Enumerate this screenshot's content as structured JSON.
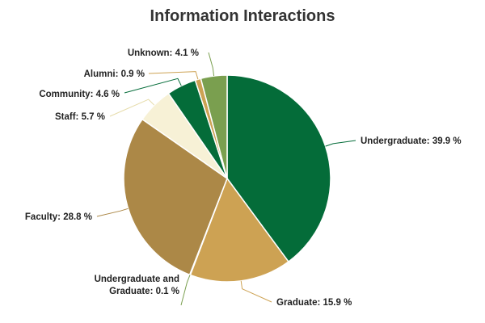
{
  "chart_data": {
    "type": "pie",
    "title": "Information Interactions",
    "unit": "%",
    "slices": [
      {
        "name": "Undergraduate",
        "value": 39.9,
        "color": "#046c39"
      },
      {
        "name": "Graduate",
        "value": 15.9,
        "color": "#cda253"
      },
      {
        "name": "Undergraduate and Graduate",
        "value": 0.1,
        "color": "#7a9f4f"
      },
      {
        "name": "Faculty",
        "value": 28.8,
        "color": "#ac8847"
      },
      {
        "name": "Staff",
        "value": 5.7,
        "color": "#f7f1d6"
      },
      {
        "name": "Community",
        "value": 4.6,
        "color": "#046c39"
      },
      {
        "name": "Alumni",
        "value": 0.9,
        "color": "#cda253"
      },
      {
        "name": "Unknown",
        "value": 4.1,
        "color": "#7a9f4f"
      }
    ],
    "labels": [
      [
        "Undergraduate: 39.9 %"
      ],
      [
        "Graduate: 15.9 %"
      ],
      [
        "Undergraduate and",
        "Graduate: 0.1 %"
      ],
      [
        "Faculty: 28.8 %"
      ],
      [
        "Staff: 5.7 %"
      ],
      [
        "Community: 4.6 %"
      ],
      [
        "Alumni: 0.9 %"
      ],
      [
        "Unknown: 4.1 %"
      ]
    ],
    "legend": false
  }
}
